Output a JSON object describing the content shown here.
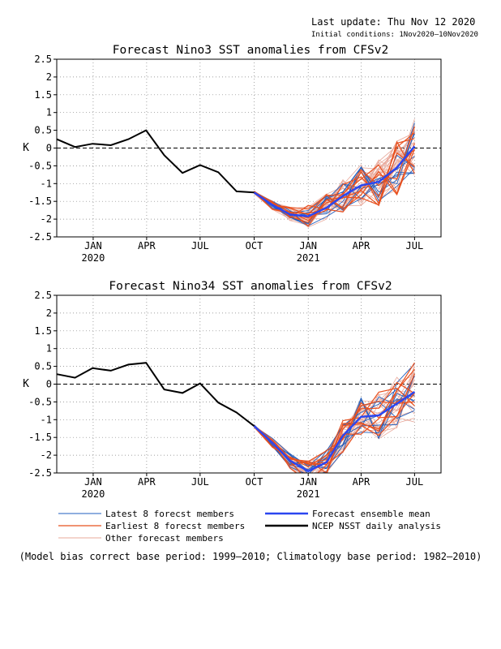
{
  "header": {
    "last_update": "Last update: Thu Nov 12 2020",
    "initial_conditions": "Initial conditions: 1Nov2020–10Nov2020"
  },
  "footer": {
    "note": "(Model bias correct base period: 1999–2010; Climatology base period: 1982–2010)"
  },
  "legend": [
    {
      "label": "Latest 8 forecst members",
      "color": "#1f5fbf"
    },
    {
      "label": "Earliest 8 forecst members",
      "color": "#e8501e"
    },
    {
      "label": "Other forecast members",
      "color": "#e8a89a"
    },
    {
      "label": "Forecast ensemble mean",
      "color": "#2b46f0"
    },
    {
      "label": "NCEP NSST daily analysis",
      "color": "#000000"
    }
  ],
  "chart_data": [
    {
      "type": "line",
      "title": "Forecast Nino3 SST anomalies from CFSv2",
      "ylabel": "K",
      "xlabel": "",
      "ylim": [
        -2.5,
        2.5
      ],
      "yticks": [
        "2.5",
        "2",
        "1.5",
        "1",
        "0.5",
        "0",
        "-0.5",
        "-1",
        "-1.5",
        "-2",
        "-2.5"
      ],
      "xticks": [
        {
          "label": "JAN",
          "sub": "2020",
          "x": "2020-01"
        },
        {
          "label": "APR",
          "sub": "",
          "x": "2020-04"
        },
        {
          "label": "JUL",
          "sub": "",
          "x": "2020-07"
        },
        {
          "label": "OCT",
          "sub": "",
          "x": "2020-10"
        },
        {
          "label": "JAN",
          "sub": "2021",
          "x": "2021-01"
        },
        {
          "label": "APR",
          "sub": "",
          "x": "2021-04"
        },
        {
          "label": "JUL",
          "sub": "",
          "x": "2021-07"
        }
      ],
      "xlim": [
        "2019-10-31",
        "2021-08-15"
      ],
      "grid": true,
      "series": [
        {
          "name": "NCEP NSST daily analysis",
          "x": [
            "2019-10-31",
            "2019-12-01",
            "2019-12-31",
            "2020-01-31",
            "2020-03-01",
            "2020-03-31",
            "2020-05-01",
            "2020-06-01",
            "2020-07-01",
            "2020-08-01",
            "2020-09-01",
            "2020-10-01"
          ],
          "values": [
            0.25,
            0.03,
            0.12,
            0.08,
            0.25,
            0.5,
            -0.2,
            -0.7,
            -0.48,
            -0.68,
            -1.22,
            -1.25
          ]
        },
        {
          "name": "Forecast ensemble mean",
          "x": [
            "2020-10-01",
            "2020-11-01",
            "2020-12-01",
            "2021-01-01",
            "2021-02-01",
            "2021-03-01",
            "2021-04-01",
            "2021-05-01",
            "2021-06-01",
            "2021-07-01"
          ],
          "values": [
            -1.25,
            -1.6,
            -1.87,
            -1.92,
            -1.68,
            -1.35,
            -1.05,
            -0.95,
            -0.55,
            0.05
          ]
        }
      ]
    },
    {
      "type": "line",
      "title": "Forecast Nino34 SST anomalies from CFSv2",
      "ylabel": "K",
      "xlabel": "",
      "ylim": [
        -2.5,
        2.5
      ],
      "yticks": [
        "2.5",
        "2",
        "1.5",
        "1",
        "0.5",
        "0",
        "-0.5",
        "-1",
        "-1.5",
        "-2",
        "-2.5"
      ],
      "xticks": [
        {
          "label": "JAN",
          "sub": "2020",
          "x": "2020-01"
        },
        {
          "label": "APR",
          "sub": "",
          "x": "2020-04"
        },
        {
          "label": "JUL",
          "sub": "",
          "x": "2020-07"
        },
        {
          "label": "OCT",
          "sub": "",
          "x": "2020-10"
        },
        {
          "label": "JAN",
          "sub": "2021",
          "x": "2021-01"
        },
        {
          "label": "APR",
          "sub": "",
          "x": "2021-04"
        },
        {
          "label": "JUL",
          "sub": "",
          "x": "2021-07"
        }
      ],
      "xlim": [
        "2019-10-31",
        "2021-08-15"
      ],
      "grid": true,
      "series": [
        {
          "name": "NCEP NSST daily analysis",
          "x": [
            "2019-10-31",
            "2019-12-01",
            "2019-12-31",
            "2020-01-31",
            "2020-03-01",
            "2020-03-31",
            "2020-05-01",
            "2020-06-01",
            "2020-07-01",
            "2020-08-01",
            "2020-09-01",
            "2020-10-01"
          ],
          "values": [
            0.28,
            0.18,
            0.45,
            0.38,
            0.55,
            0.6,
            -0.15,
            -0.25,
            0.02,
            -0.52,
            -0.8,
            -1.18
          ]
        },
        {
          "name": "Forecast ensemble mean",
          "x": [
            "2020-10-01",
            "2020-11-01",
            "2020-12-01",
            "2021-01-01",
            "2021-02-01",
            "2021-03-01",
            "2021-04-01",
            "2021-05-01",
            "2021-06-01",
            "2021-07-01"
          ],
          "values": [
            -1.18,
            -1.65,
            -2.15,
            -2.45,
            -2.2,
            -1.45,
            -0.92,
            -0.88,
            -0.55,
            -0.22
          ]
        }
      ]
    }
  ]
}
